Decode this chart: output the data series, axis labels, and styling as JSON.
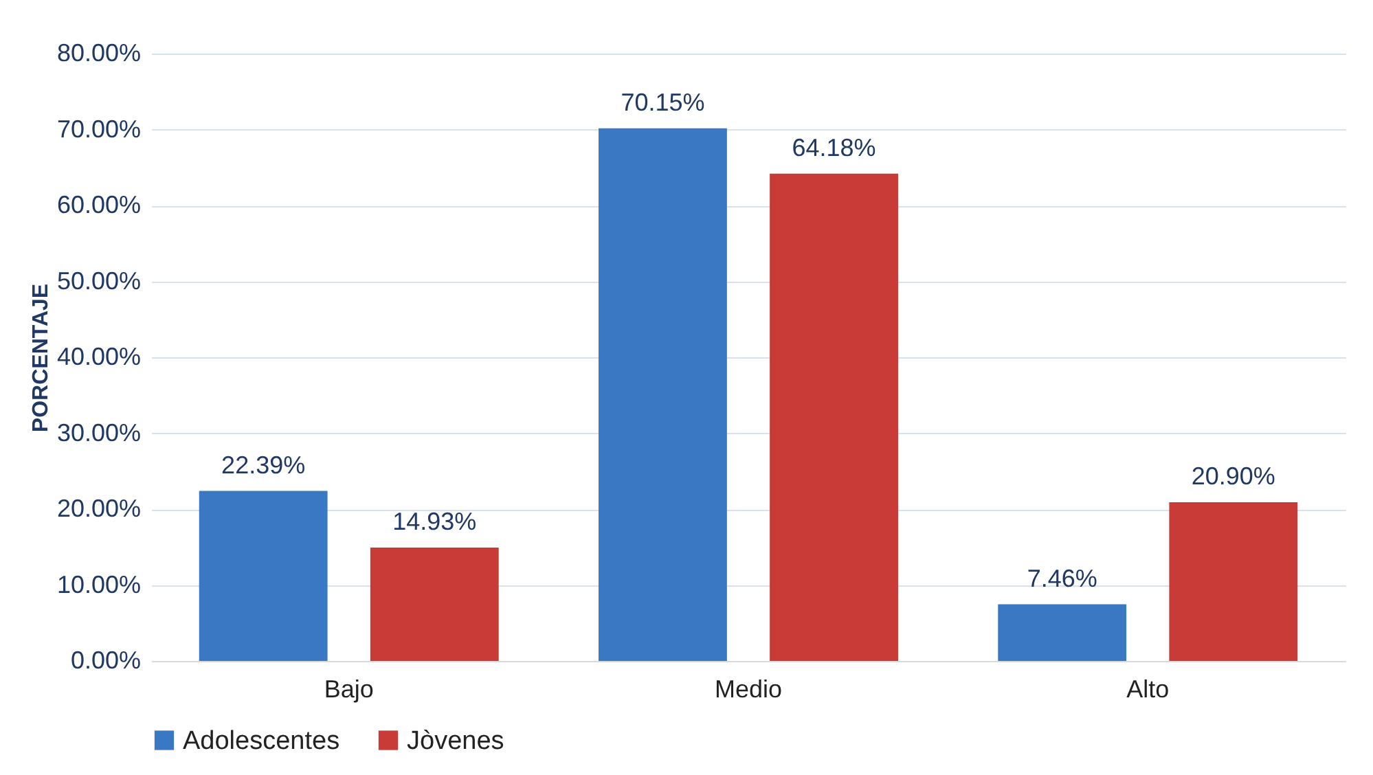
{
  "chart_data": {
    "type": "bar",
    "ylabel": "PORCENTAJE",
    "categories": [
      "Bajo",
      "Medio",
      "Alto"
    ],
    "series": [
      {
        "name": "Adolescentes",
        "color": "#3a78c4",
        "values": [
          22.39,
          70.15,
          7.46
        ],
        "value_labels": [
          "22.39%",
          "70.15%",
          "7.46%"
        ]
      },
      {
        "name": "Jòvenes",
        "color": "#c93b36",
        "values": [
          14.93,
          64.18,
          20.9
        ],
        "value_labels": [
          "14.93%",
          "64.18%",
          "20.90%"
        ]
      }
    ],
    "ylim": [
      0,
      80
    ],
    "yticks": [
      {
        "value": 0,
        "label": "0.00%"
      },
      {
        "value": 10,
        "label": "10.00%"
      },
      {
        "value": 20,
        "label": "20.00%"
      },
      {
        "value": 30,
        "label": "30.00%"
      },
      {
        "value": 40,
        "label": "40.00%"
      },
      {
        "value": 50,
        "label": "50.00%"
      },
      {
        "value": 60,
        "label": "60.00%"
      },
      {
        "value": 70,
        "label": "70.00%"
      },
      {
        "value": 80,
        "label": "80.00%"
      }
    ],
    "grid": "y",
    "legend": "bottom"
  }
}
